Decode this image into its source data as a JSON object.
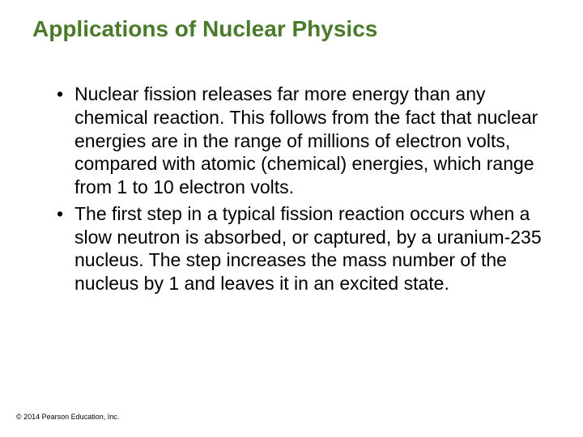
{
  "title": "Applications of Nuclear Physics",
  "bullets": [
    "Nuclear fission releases far more energy than any chemical reaction. This follows from the fact that nuclear energies are in the range of millions of electron volts, compared with atomic (chemical) energies, which range from 1 to 10 electron volts.",
    "The first step in a typical fission reaction occurs when a slow neutron is absorbed, or captured, by a uranium-235 nucleus. The step increases the mass number of the nucleus by 1 and leaves it in an excited state."
  ],
  "copyright": "© 2014 Pearson Education, Inc.",
  "colors": {
    "title_color": "#4a7a2a",
    "body_text_color": "#000000",
    "background": "#ffffff"
  },
  "typography": {
    "title_fontsize": 28,
    "title_weight": "bold",
    "body_fontsize": 23,
    "copyright_fontsize": 9,
    "font_family": "Arial"
  }
}
